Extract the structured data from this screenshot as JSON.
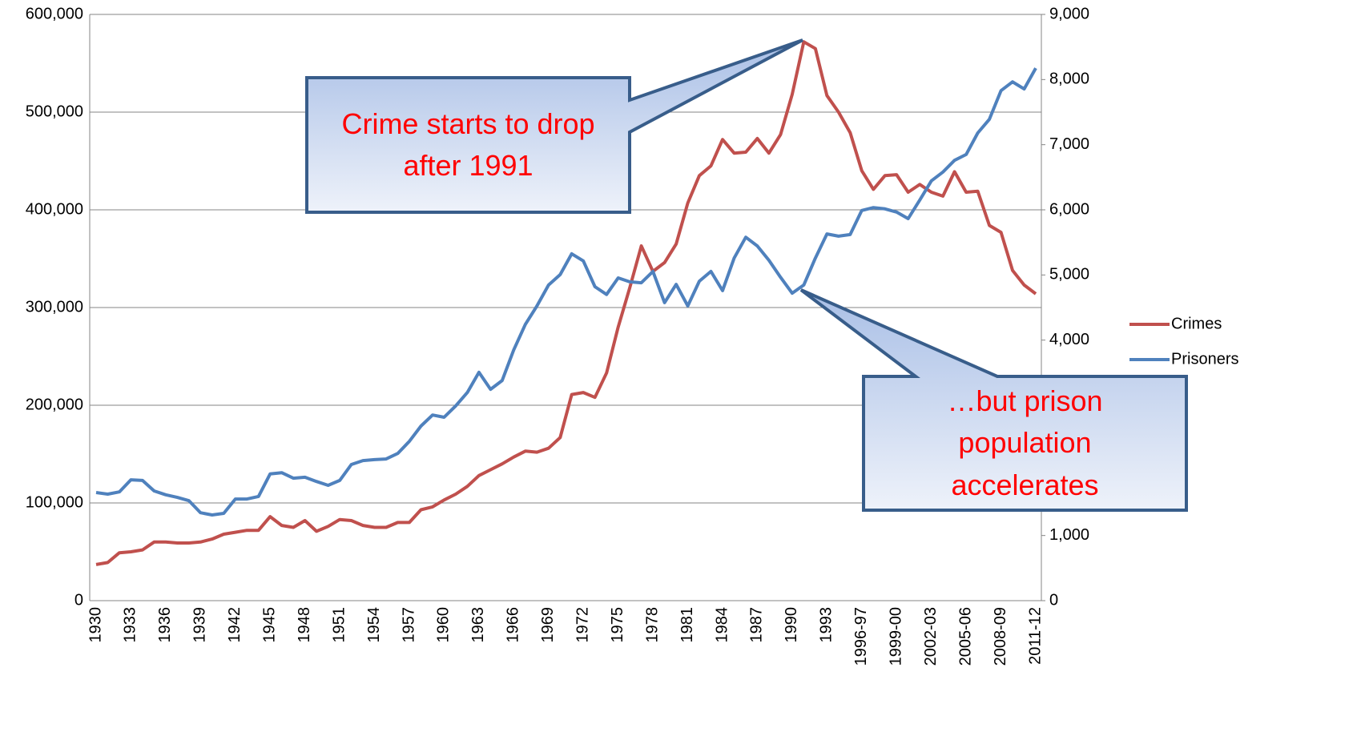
{
  "chart_data": {
    "type": "line",
    "categories": [
      "1930",
      null,
      null,
      "1933",
      null,
      null,
      "1936",
      null,
      null,
      "1939",
      null,
      null,
      "1942",
      null,
      null,
      "1945",
      null,
      null,
      "1948",
      null,
      null,
      "1951",
      null,
      null,
      "1954",
      null,
      null,
      "1957",
      null,
      null,
      "1960",
      null,
      null,
      "1963",
      null,
      null,
      "1966",
      null,
      null,
      "1969",
      null,
      null,
      "1972",
      null,
      null,
      "1975",
      null,
      null,
      "1978",
      null,
      null,
      "1981",
      null,
      null,
      "1984",
      null,
      null,
      "1987",
      null,
      null,
      "1990",
      null,
      null,
      "1993",
      null,
      null,
      "1996-97",
      null,
      null,
      "1999-00",
      null,
      null,
      "2002-03",
      null,
      null,
      "2005-06",
      null,
      null,
      "2008-09",
      null,
      null,
      "2011-12"
    ],
    "series": [
      {
        "name": "Crimes",
        "color": "#c0504d",
        "values": [
          37000,
          39000,
          49000,
          50000,
          52000,
          60000,
          60000,
          59000,
          59000,
          60000,
          63000,
          68000,
          70000,
          72000,
          72000,
          86000,
          77000,
          75000,
          82000,
          71000,
          76000,
          83000,
          82000,
          77000,
          75000,
          75000,
          80000,
          80000,
          93000,
          96000,
          103000,
          109000,
          117000,
          128000,
          134000,
          140000,
          147000,
          153000,
          152000,
          156000,
          167000,
          211000,
          213000,
          208000,
          233000,
          280000,
          320000,
          363000,
          337000,
          346000,
          365000,
          407000,
          435000,
          445000,
          472000,
          458000,
          459000,
          473000,
          458000,
          477000,
          518000,
          572000,
          565000,
          517000,
          500000,
          479000,
          440000,
          421000,
          435000,
          436000,
          418000,
          426000,
          418000,
          414000,
          439000,
          418000,
          419000,
          384000,
          377000,
          338000,
          323000,
          314000
        ]
      },
      {
        "name": "Prisoners",
        "color": "#4f81bd",
        "axis": "y2",
        "values": [
          1660,
          1635,
          1670,
          1855,
          1845,
          1685,
          1625,
          1585,
          1535,
          1350,
          1315,
          1340,
          1560,
          1560,
          1600,
          1945,
          1965,
          1880,
          1895,
          1830,
          1770,
          1845,
          2090,
          2150,
          2165,
          2175,
          2260,
          2445,
          2680,
          2850,
          2815,
          2990,
          3195,
          3505,
          3245,
          3380,
          3850,
          4240,
          4525,
          4845,
          5005,
          5325,
          5215,
          4820,
          4700,
          4955,
          4895,
          4880,
          5055,
          4575,
          4855,
          4525,
          4905,
          5055,
          4760,
          5260,
          5580,
          5445,
          5225,
          4965,
          4720,
          4845,
          5260,
          5630,
          5595,
          5620,
          5990,
          6035,
          6015,
          5965,
          5865,
          6150,
          6445,
          6580,
          6760,
          6850,
          7180,
          7390,
          7830,
          7965,
          7855,
          8175
        ]
      }
    ],
    "ylim": [
      0,
      600000
    ],
    "yticks": [
      0,
      {
        "value": 100000,
        "label": "100,000"
      },
      {
        "value": 200000,
        "label": "200,000"
      },
      {
        "value": 300000,
        "label": "300,000"
      },
      {
        "value": 400000,
        "label": "400,000"
      },
      {
        "value": 500000,
        "label": "500,000"
      },
      {
        "value": 600000,
        "label": "600,000"
      }
    ],
    "y2lim": [
      0,
      9000
    ],
    "y2ticks": [
      0,
      {
        "value": 1000,
        "label": "1,000"
      },
      {
        "value": 2000,
        "label": "2,000"
      },
      {
        "value": 3000,
        "label": "3,000"
      },
      {
        "value": 4000,
        "label": "4,000"
      },
      {
        "value": 5000,
        "label": "5,000"
      },
      {
        "value": 6000,
        "label": "6,000"
      },
      {
        "value": 7000,
        "label": "7,000"
      },
      {
        "value": 8000,
        "label": "8,000"
      },
      {
        "value": 9000,
        "label": "9,000"
      }
    ],
    "grid": true,
    "legend": "right",
    "annotations": [
      {
        "text": "Crime starts to drop after 1991"
      },
      {
        "text": "…but prison population accelerates"
      }
    ]
  }
}
